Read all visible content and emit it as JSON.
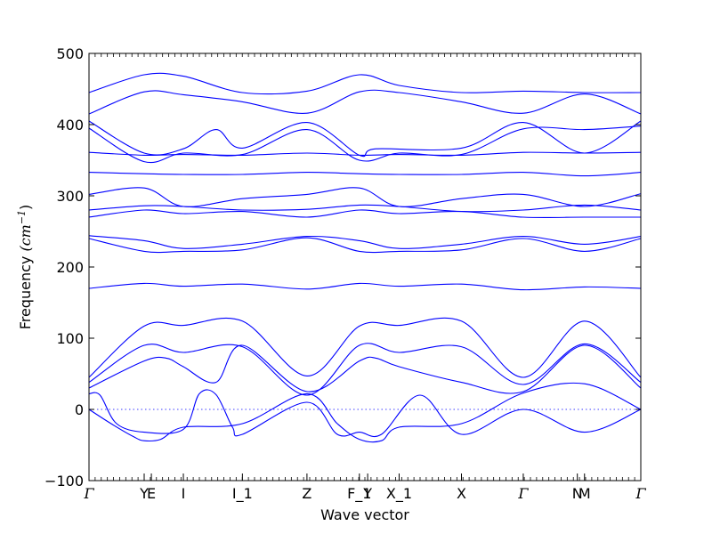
{
  "chart_data": {
    "type": "line",
    "title": "",
    "xlabel": "Wave vector",
    "ylabel_text": "Frequency",
    "ylabel_unit": "(cm",
    "ylabel_unit_sup": "−1",
    "ylabel_unit_close": ")",
    "ylim": [
      -100,
      500
    ],
    "yticks": [
      -100,
      0,
      100,
      200,
      300,
      400,
      500
    ],
    "ytick_labels": [
      "−100",
      "0",
      "100",
      "200",
      "300",
      "400",
      "500"
    ],
    "xlim": [
      0,
      1
    ],
    "high_symmetry_points": [
      {
        "label": "Γ",
        "x": 0.0
      },
      {
        "label": "Y",
        "x": 0.1
      },
      {
        "label": "E",
        "x": 0.113
      },
      {
        "label": "I",
        "x": 0.171
      },
      {
        "label": "I_1",
        "x": 0.278
      },
      {
        "label": "Z",
        "x": 0.395
      },
      {
        "label": "F_1",
        "x": 0.49
      },
      {
        "label": "Y",
        "x": 0.505
      },
      {
        "label": "X_1",
        "x": 0.562
      },
      {
        "label": "X",
        "x": 0.675
      },
      {
        "label": "Γ",
        "x": 0.787
      },
      {
        "label": "N",
        "x": 0.885
      },
      {
        "label": "M",
        "x": 0.898
      },
      {
        "label": "Γ",
        "x": 1.0
      }
    ],
    "zero_line": {
      "y": 0,
      "style": "dotted"
    },
    "grid": false,
    "legend": "none",
    "color": "#0000ff",
    "series": [
      {
        "x": [
          0,
          0.1,
          0.171,
          0.278,
          0.395,
          0.49,
          0.562,
          0.675,
          0.787,
          0.898,
          1
        ],
        "values": [
          445,
          470,
          468,
          445,
          447,
          470,
          455,
          445,
          447,
          445,
          445
        ]
      },
      {
        "x": [
          0,
          0.1,
          0.171,
          0.278,
          0.395,
          0.49,
          0.562,
          0.675,
          0.787,
          0.898,
          1
        ],
        "values": [
          415,
          446,
          442,
          432,
          416,
          446,
          445,
          432,
          416,
          443,
          415
        ]
      },
      {
        "x": [
          0,
          0.1,
          0.171,
          0.23,
          0.278,
          0.395,
          0.49,
          0.52,
          0.675,
          0.787,
          0.898,
          1
        ],
        "values": [
          405,
          360,
          366,
          393,
          367,
          403,
          357,
          366,
          367,
          403,
          360,
          405
        ]
      },
      {
        "x": [
          0,
          0.1,
          0.171,
          0.278,
          0.395,
          0.49,
          0.562,
          0.675,
          0.787,
          0.898,
          1
        ],
        "values": [
          395,
          348,
          360,
          358,
          393,
          350,
          360,
          358,
          394,
          393,
          398
        ]
      },
      {
        "x": [
          0,
          0.1,
          0.171,
          0.278,
          0.395,
          0.49,
          0.562,
          0.675,
          0.787,
          0.898,
          1
        ],
        "values": [
          361,
          357,
          358,
          357,
          360,
          357,
          358,
          357,
          361,
          360,
          361
        ]
      },
      {
        "x": [
          0,
          0.1,
          0.171,
          0.278,
          0.395,
          0.49,
          0.562,
          0.675,
          0.787,
          0.898,
          1
        ],
        "values": [
          333,
          331,
          330,
          330,
          333,
          331,
          330,
          330,
          333,
          328,
          333
        ]
      },
      {
        "x": [
          0,
          0.1,
          0.171,
          0.278,
          0.395,
          0.49,
          0.562,
          0.675,
          0.787,
          0.898,
          1
        ],
        "values": [
          302,
          311,
          285,
          296,
          302,
          311,
          285,
          296,
          302,
          285,
          303
        ]
      },
      {
        "x": [
          0,
          0.1,
          0.171,
          0.278,
          0.395,
          0.49,
          0.562,
          0.675,
          0.787,
          0.898,
          1
        ],
        "values": [
          280,
          286,
          285,
          280,
          281,
          287,
          285,
          278,
          280,
          287,
          280
        ]
      },
      {
        "x": [
          0,
          0.1,
          0.171,
          0.278,
          0.395,
          0.49,
          0.562,
          0.675,
          0.787,
          0.898,
          1
        ],
        "values": [
          270,
          280,
          275,
          278,
          270,
          280,
          275,
          278,
          270,
          270,
          270
        ]
      },
      {
        "x": [
          0,
          0.1,
          0.171,
          0.278,
          0.395,
          0.49,
          0.562,
          0.675,
          0.787,
          0.898,
          1
        ],
        "values": [
          244,
          237,
          226,
          232,
          243,
          237,
          226,
          232,
          243,
          232,
          243
        ]
      },
      {
        "x": [
          0,
          0.1,
          0.171,
          0.278,
          0.395,
          0.49,
          0.562,
          0.675,
          0.787,
          0.898,
          1
        ],
        "values": [
          240,
          222,
          222,
          224,
          241,
          222,
          222,
          224,
          240,
          222,
          240
        ]
      },
      {
        "x": [
          0,
          0.1,
          0.171,
          0.278,
          0.395,
          0.49,
          0.562,
          0.675,
          0.787,
          0.898,
          1
        ],
        "values": [
          170,
          177,
          173,
          176,
          169,
          177,
          173,
          176,
          168,
          172,
          170
        ]
      },
      {
        "x": [
          0,
          0.1,
          0.171,
          0.278,
          0.395,
          0.49,
          0.562,
          0.675,
          0.787,
          0.898,
          1
        ],
        "values": [
          45,
          117,
          118,
          124,
          47,
          117,
          118,
          124,
          45,
          124,
          45
        ]
      },
      {
        "x": [
          0,
          0.1,
          0.171,
          0.278,
          0.395,
          0.49,
          0.562,
          0.675,
          0.787,
          0.898,
          1
        ],
        "values": [
          38,
          90,
          80,
          88,
          20,
          90,
          80,
          88,
          35,
          92,
          38
        ]
      },
      {
        "x": [
          0,
          0.1,
          0.14,
          0.171,
          0.23,
          0.278,
          0.395,
          0.49,
          0.52,
          0.562,
          0.675,
          0.787,
          0.898,
          1
        ],
        "values": [
          30,
          68,
          72,
          60,
          38,
          90,
          25,
          68,
          72,
          60,
          38,
          25,
          90,
          30
        ]
      },
      {
        "x": [
          0,
          0.04,
          0.08,
          0.1,
          0.13,
          0.171,
          0.278,
          0.395,
          0.45,
          0.49,
          0.53,
          0.562,
          0.675,
          0.787,
          0.898,
          1
        ],
        "values": [
          0,
          -20,
          -38,
          -44,
          -42,
          -25,
          -20,
          22,
          -20,
          -42,
          -44,
          -25,
          -20,
          23,
          36,
          0
        ]
      },
      {
        "x": [
          0,
          0.02,
          0.05,
          0.1,
          0.171,
          0.2,
          0.23,
          0.26,
          0.278,
          0.395,
          0.45,
          0.49,
          0.53,
          0.6,
          0.675,
          0.787,
          0.898,
          1
        ],
        "values": [
          22,
          20,
          -20,
          -32,
          -28,
          22,
          21,
          -25,
          -35,
          10,
          -35,
          -32,
          -35,
          20,
          -35,
          0,
          -32,
          0
        ]
      }
    ]
  }
}
